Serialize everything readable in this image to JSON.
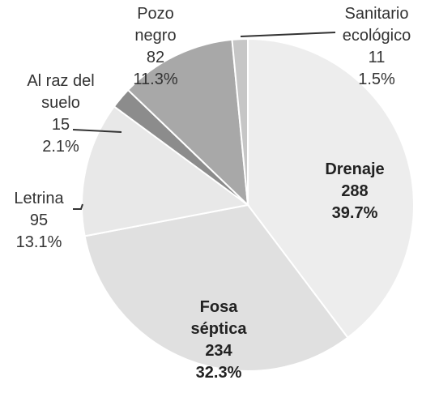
{
  "chart_data": {
    "type": "pie",
    "categories": [
      "Drenaje",
      "Fosa\nséptica",
      "Letrina",
      "Al raz del\nsuelo",
      "Pozo\nnegro",
      "Sanitario\necológico"
    ],
    "values": [
      288,
      234,
      95,
      15,
      82,
      11
    ],
    "shares": [
      39.7,
      32.3,
      13.1,
      2.1,
      11.3,
      1.5
    ],
    "share_labels": [
      "39.7%",
      "32.3%",
      "13.1%",
      "2.1%",
      "11.3%",
      "1.5%"
    ],
    "colors": [
      "#ededed",
      "#e0e0e0",
      "#e8e8e8",
      "#8c8c8c",
      "#a8a8a8",
      "#c6c6c6"
    ]
  }
}
